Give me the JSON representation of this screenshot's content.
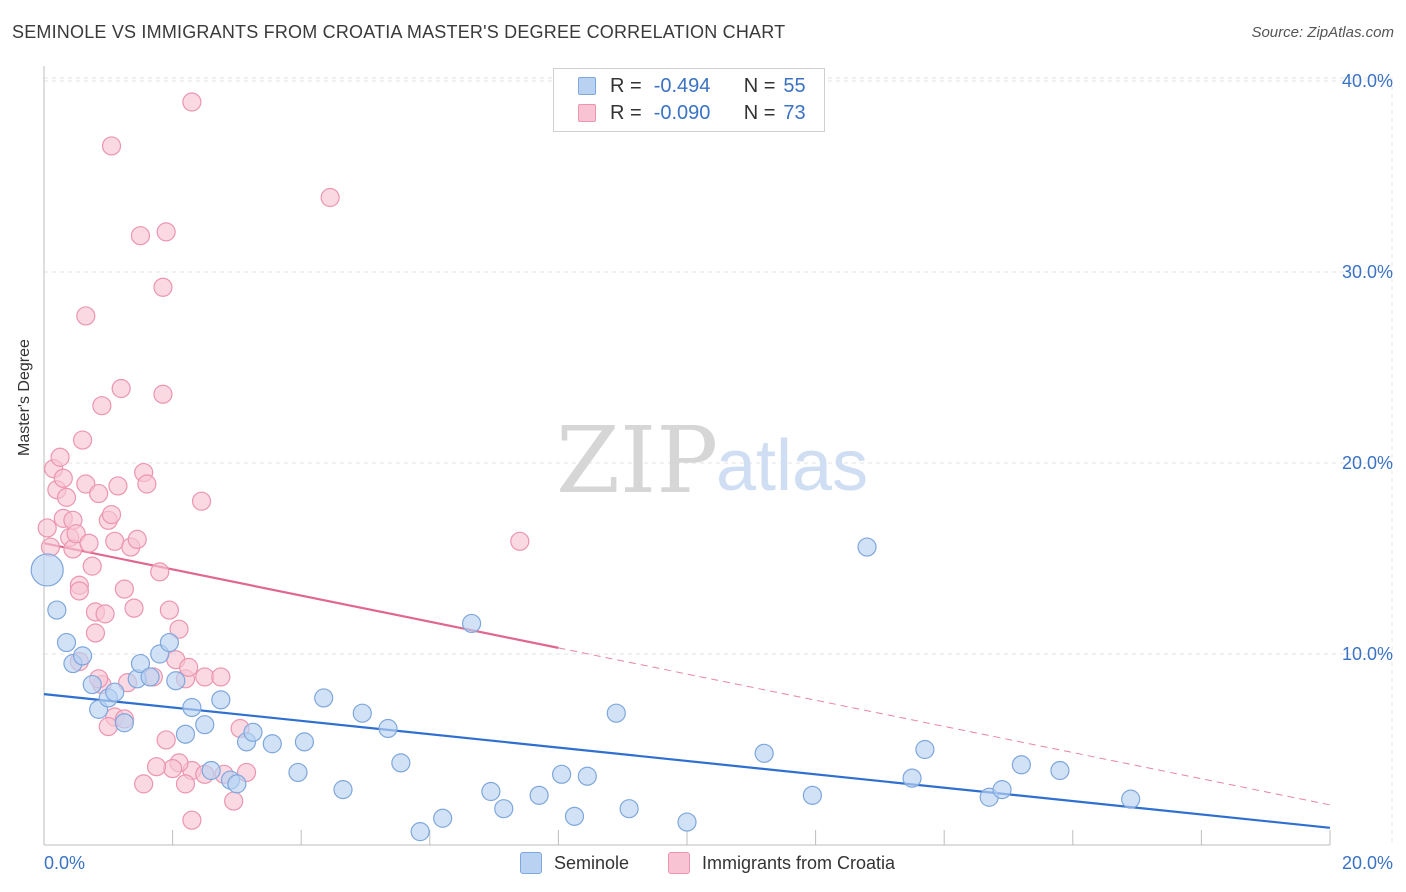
{
  "title": "SEMINOLE VS IMMIGRANTS FROM CROATIA MASTER'S DEGREE CORRELATION CHART",
  "source": "Source: ZipAtlas.com",
  "watermark": {
    "zip": "ZIP",
    "atlas": "atlas"
  },
  "legend": {
    "r_label": "R =",
    "n_label": "N =",
    "series1": {
      "r": "-0.494",
      "n": "55"
    },
    "series2": {
      "r": "-0.090",
      "n": "73"
    }
  },
  "bottom_legend": {
    "series1": "Seminole",
    "series2": "Immigrants from Croatia"
  },
  "colors": {
    "seminole_fill": "#b9d2f2",
    "seminole_stroke": "#7fa7dc",
    "seminole_line": "#2e6fcf",
    "croatia_fill": "#f8c4d4",
    "croatia_stroke": "#ec95b0",
    "croatia_line": "#e0688f",
    "tick_label": "#3a72c4"
  },
  "chart_data": {
    "type": "scatter",
    "title": "SEMINOLE VS IMMIGRANTS FROM CROATIA MASTER'S DEGREE CORRELATION CHART",
    "xlabel": "",
    "ylabel": "Master's Degree",
    "xlim": [
      0,
      20
    ],
    "ylim": [
      0,
      40
    ],
    "x_ticks": [
      "0.0%",
      "20.0%"
    ],
    "y_ticks": [
      {
        "value": 10,
        "label": "10.0%"
      },
      {
        "value": 20,
        "label": "20.0%"
      },
      {
        "value": 30,
        "label": "30.0%"
      },
      {
        "value": 40,
        "label": "40.0%"
      }
    ],
    "series": [
      {
        "name": "Seminole",
        "r": -0.494,
        "n": 55,
        "trend": {
          "x": [
            0,
            20
          ],
          "y": [
            7.9,
            0.9
          ],
          "dashed_from": null
        },
        "points": [
          [
            0.05,
            14.4,
            "L"
          ],
          [
            0.2,
            12.3
          ],
          [
            0.35,
            10.6
          ],
          [
            0.45,
            9.5
          ],
          [
            0.6,
            9.9
          ],
          [
            0.75,
            8.4
          ],
          [
            0.85,
            7.1
          ],
          [
            1.0,
            7.7
          ],
          [
            1.1,
            8.0
          ],
          [
            1.25,
            6.4
          ],
          [
            1.45,
            8.7
          ],
          [
            1.5,
            9.5
          ],
          [
            1.65,
            8.8
          ],
          [
            1.8,
            10.0
          ],
          [
            1.95,
            10.6
          ],
          [
            2.05,
            8.6
          ],
          [
            2.2,
            5.8
          ],
          [
            2.3,
            7.2
          ],
          [
            2.5,
            6.3
          ],
          [
            2.6,
            3.9
          ],
          [
            2.75,
            7.6
          ],
          [
            2.9,
            3.4
          ],
          [
            3.0,
            3.2
          ],
          [
            3.15,
            5.4
          ],
          [
            3.25,
            5.9
          ],
          [
            3.55,
            5.3
          ],
          [
            3.95,
            3.8
          ],
          [
            4.05,
            5.4
          ],
          [
            4.35,
            7.7
          ],
          [
            4.65,
            2.9
          ],
          [
            4.95,
            6.9
          ],
          [
            5.35,
            6.1
          ],
          [
            5.55,
            4.3
          ],
          [
            5.85,
            0.7
          ],
          [
            6.2,
            1.4
          ],
          [
            6.65,
            11.6
          ],
          [
            6.95,
            2.8
          ],
          [
            7.15,
            1.9
          ],
          [
            7.7,
            2.6
          ],
          [
            8.05,
            3.7
          ],
          [
            8.25,
            1.5
          ],
          [
            8.45,
            3.6
          ],
          [
            8.9,
            6.9
          ],
          [
            9.1,
            1.9
          ],
          [
            10.0,
            1.2
          ],
          [
            11.2,
            4.8
          ],
          [
            11.95,
            2.6
          ],
          [
            12.8,
            15.6
          ],
          [
            13.5,
            3.5
          ],
          [
            13.7,
            5.0
          ],
          [
            14.7,
            2.5
          ],
          [
            14.9,
            2.9
          ],
          [
            15.2,
            4.2
          ],
          [
            15.8,
            3.9
          ],
          [
            16.9,
            2.4
          ]
        ]
      },
      {
        "name": "Immigrants from Croatia",
        "r": -0.09,
        "n": 73,
        "trend": {
          "x": [
            0,
            20
          ],
          "y": [
            15.8,
            2.1
          ],
          "dashed_from": 8.0
        },
        "points": [
          [
            0.05,
            16.6
          ],
          [
            0.1,
            15.6
          ],
          [
            0.15,
            19.7
          ],
          [
            0.2,
            18.6
          ],
          [
            0.25,
            20.3
          ],
          [
            0.3,
            19.2
          ],
          [
            0.3,
            17.1
          ],
          [
            0.35,
            18.2
          ],
          [
            0.4,
            16.1
          ],
          [
            0.45,
            17.0
          ],
          [
            0.45,
            15.5
          ],
          [
            0.5,
            16.3
          ],
          [
            0.55,
            13.6
          ],
          [
            0.55,
            13.3
          ],
          [
            0.6,
            21.2
          ],
          [
            0.65,
            18.9
          ],
          [
            0.65,
            27.7
          ],
          [
            0.7,
            15.8
          ],
          [
            0.75,
            14.6
          ],
          [
            0.8,
            12.2
          ],
          [
            0.8,
            11.1
          ],
          [
            0.85,
            18.4
          ],
          [
            0.9,
            23.0
          ],
          [
            0.95,
            12.1
          ],
          [
            1.0,
            17.0
          ],
          [
            1.05,
            17.3
          ],
          [
            1.05,
            36.6
          ],
          [
            1.1,
            15.9
          ],
          [
            1.15,
            18.8
          ],
          [
            1.2,
            23.9
          ],
          [
            1.25,
            13.4
          ],
          [
            1.3,
            8.5
          ],
          [
            1.35,
            15.6
          ],
          [
            1.4,
            12.4
          ],
          [
            1.45,
            16.0
          ],
          [
            1.5,
            31.9
          ],
          [
            1.55,
            19.5
          ],
          [
            1.6,
            18.9
          ],
          [
            1.7,
            8.8
          ],
          [
            1.8,
            14.3
          ],
          [
            1.85,
            29.2
          ],
          [
            1.85,
            23.6
          ],
          [
            1.9,
            32.1
          ],
          [
            1.95,
            12.3
          ],
          [
            2.05,
            9.7
          ],
          [
            2.1,
            11.3
          ],
          [
            2.2,
            8.7
          ],
          [
            2.25,
            9.3
          ],
          [
            2.3,
            38.9
          ],
          [
            2.45,
            18.0
          ],
          [
            2.5,
            8.8
          ],
          [
            2.3,
            3.9
          ],
          [
            2.5,
            3.7
          ],
          [
            2.1,
            4.3
          ],
          [
            2.2,
            3.2
          ],
          [
            2.0,
            4.0
          ],
          [
            2.3,
            1.3
          ],
          [
            1.9,
            5.5
          ],
          [
            1.75,
            4.1
          ],
          [
            1.55,
            3.2
          ],
          [
            1.1,
            6.7
          ],
          [
            1.0,
            6.2
          ],
          [
            0.9,
            8.4
          ],
          [
            0.85,
            8.7
          ],
          [
            2.8,
            3.7
          ],
          [
            2.95,
            2.3
          ],
          [
            3.05,
            6.1
          ],
          [
            3.15,
            3.8
          ],
          [
            4.45,
            33.9
          ],
          [
            7.4,
            15.9
          ],
          [
            0.55,
            9.6
          ],
          [
            1.25,
            6.6
          ],
          [
            2.75,
            8.8
          ]
        ]
      }
    ]
  }
}
